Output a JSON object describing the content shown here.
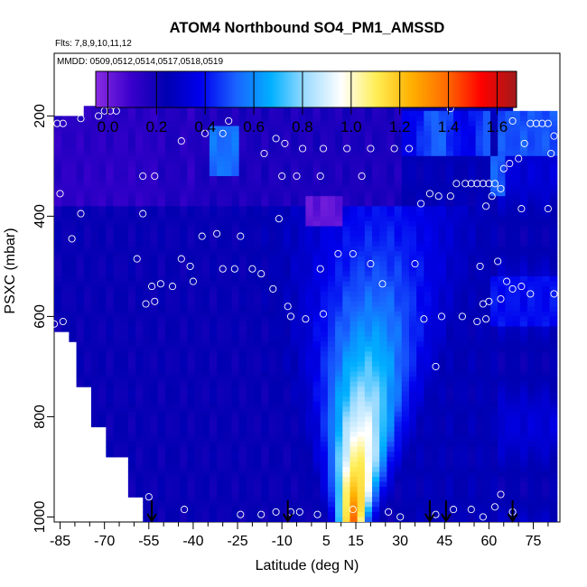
{
  "chart_data": {
    "type": "heatmap",
    "title": "ATOM4 Northbound SO4_PM1_AMSSD",
    "flights_label": "Flts: 7,8,9,10,11,12",
    "dates_label": "MMDD: 0509,0512,0514,0517,0518,0519",
    "xlabel": "Latitude (deg N)",
    "ylabel": "PSXC (mbar)",
    "xlim": [
      -87,
      84
    ],
    "ylim": [
      1010,
      75
    ],
    "x_ticks": [
      -85,
      -70,
      -55,
      -40,
      -25,
      -10,
      5,
      15,
      30,
      45,
      60,
      75
    ],
    "x_minor_ticks": [
      -80,
      -75,
      -65,
      -60,
      -50,
      -45,
      -35,
      -30,
      -20,
      -15,
      -5,
      0,
      10,
      20,
      25,
      35,
      40,
      50,
      55,
      65,
      70,
      80
    ],
    "y_ticks": [
      200,
      400,
      600,
      800,
      1000
    ],
    "colorbar": {
      "ticks": [
        0.0,
        0.2,
        0.4,
        0.6,
        0.8,
        1.0,
        1.2,
        1.4,
        1.6
      ],
      "tick_labels": [
        "0.0",
        "0.2",
        "0.4",
        "0.6",
        "0.8",
        "1.0",
        "1.2",
        "1.4",
        "1.6"
      ],
      "range": [
        -0.05,
        1.68
      ],
      "colors": [
        "#8a2be2",
        "#3a00cc",
        "#0000b0",
        "#0000ee",
        "#1a63ff",
        "#00b0ff",
        "#9fdcff",
        "#ffffff",
        "#ffee55",
        "#ffb000",
        "#ff6a00",
        "#ff0000",
        "#a01a1a"
      ]
    },
    "field_description": "SO4 concentration curtain: ~0.1-0.3 in southern hemisphere, plume >1.2 near 10-20N surface",
    "sample_points": [
      [
        -70,
        190
      ],
      [
        -68,
        190
      ],
      [
        -66,
        190
      ],
      [
        -72,
        200
      ],
      [
        -78,
        205
      ],
      [
        -84,
        215
      ],
      [
        -86,
        215
      ],
      [
        -28,
        210
      ],
      [
        -44,
        250
      ],
      [
        -36,
        235
      ],
      [
        -30,
        235
      ],
      [
        -16,
        275
      ],
      [
        -12,
        245
      ],
      [
        -9,
        255
      ],
      [
        -3,
        265
      ],
      [
        4,
        265
      ],
      [
        12,
        265
      ],
      [
        20,
        265
      ],
      [
        28,
        265
      ],
      [
        33,
        265
      ],
      [
        47,
        185
      ],
      [
        68,
        210
      ],
      [
        74,
        215
      ],
      [
        76,
        215
      ],
      [
        78,
        215
      ],
      [
        80,
        215
      ],
      [
        82,
        240
      ],
      [
        72,
        255
      ],
      [
        81,
        275
      ],
      [
        70,
        285
      ],
      [
        67,
        295
      ],
      [
        65,
        305
      ],
      [
        -57,
        320
      ],
      [
        -53,
        320
      ],
      [
        -10,
        320
      ],
      [
        -5,
        320
      ],
      [
        3,
        320
      ],
      [
        17,
        320
      ],
      [
        40,
        355
      ],
      [
        43,
        360
      ],
      [
        47,
        360
      ],
      [
        49,
        335
      ],
      [
        52,
        335
      ],
      [
        54,
        335
      ],
      [
        56,
        335
      ],
      [
        58,
        335
      ],
      [
        60,
        335
      ],
      [
        62,
        335
      ],
      [
        64,
        345
      ],
      [
        61,
        360
      ],
      [
        59,
        380
      ],
      [
        37,
        375
      ],
      [
        71,
        385
      ],
      [
        80,
        385
      ],
      [
        -85,
        355
      ],
      [
        -78,
        395
      ],
      [
        -57,
        395
      ],
      [
        -11,
        405
      ],
      [
        -37,
        440
      ],
      [
        -32,
        435
      ],
      [
        -24,
        440
      ],
      [
        -81,
        445
      ],
      [
        -44,
        485
      ],
      [
        -26,
        505
      ],
      [
        -20,
        505
      ],
      [
        -17,
        515
      ],
      [
        -30,
        505
      ],
      [
        -59,
        485
      ],
      [
        -51,
        535
      ],
      [
        -54,
        540
      ],
      [
        -47,
        540
      ],
      [
        -40,
        530
      ],
      [
        -13,
        545
      ],
      [
        9,
        475
      ],
      [
        14,
        475
      ],
      [
        3,
        505
      ],
      [
        20,
        495
      ],
      [
        35,
        495
      ],
      [
        57,
        500
      ],
      [
        63,
        490
      ],
      [
        66,
        530
      ],
      [
        68,
        545
      ],
      [
        71,
        540
      ],
      [
        74,
        555
      ],
      [
        82,
        555
      ],
      [
        24,
        535
      ],
      [
        -41,
        500
      ],
      [
        -56,
        575
      ],
      [
        -53,
        570
      ],
      [
        -8,
        580
      ],
      [
        -7,
        600
      ],
      [
        -2,
        605
      ],
      [
        4,
        595
      ],
      [
        38,
        605
      ],
      [
        44,
        600
      ],
      [
        51,
        600
      ],
      [
        56,
        610
      ],
      [
        58,
        575
      ],
      [
        60,
        570
      ],
      [
        59,
        605
      ],
      [
        64,
        565
      ],
      [
        -87,
        615
      ],
      [
        -84,
        610
      ],
      [
        42,
        700
      ],
      [
        -80,
        815
      ],
      [
        -55,
        960
      ],
      [
        -43,
        985
      ],
      [
        -24,
        995
      ],
      [
        -17,
        995
      ],
      [
        -12,
        990
      ],
      [
        -7,
        990
      ],
      [
        -4,
        990
      ],
      [
        2,
        995
      ],
      [
        14,
        985
      ],
      [
        26,
        990
      ],
      [
        30,
        1000
      ],
      [
        42,
        995
      ],
      [
        48,
        985
      ],
      [
        54,
        985
      ],
      [
        58,
        1000
      ],
      [
        62,
        980
      ],
      [
        64,
        955
      ],
      [
        68,
        990
      ]
    ],
    "arrows_lat": [
      -54,
      -8,
      40,
      45.5,
      68
    ],
    "subtitle": ""
  }
}
